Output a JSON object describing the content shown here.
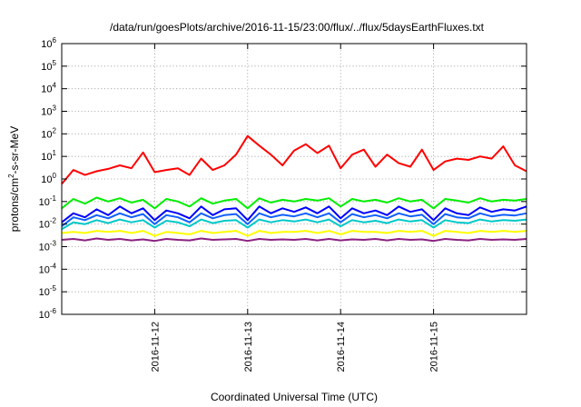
{
  "chart_data": {
    "type": "line",
    "title": "/data/run/goesPlots/archive/2016-11-15/23:00/flux/../flux/5daysEarthFluxes.txt",
    "xlabel": "Coordinated Universal Time (UTC)",
    "ylabel_parts": [
      "protons/cm",
      "2",
      "-s-sr-MeV"
    ],
    "yscale": "log",
    "ylim": [
      1e-06,
      1000000.0
    ],
    "xlim": [
      "2016-11-11T00:00",
      "2016-11-16T00:00"
    ],
    "grid": true,
    "y_ticks": [
      {
        "base": "10",
        "exp": "-6"
      },
      {
        "base": "10",
        "exp": "-5"
      },
      {
        "base": "10",
        "exp": "-4"
      },
      {
        "base": "10",
        "exp": "-3"
      },
      {
        "base": "10",
        "exp": "-2"
      },
      {
        "base": "10",
        "exp": "-1"
      },
      {
        "base": "10",
        "exp": "0"
      },
      {
        "base": "10",
        "exp": "1"
      },
      {
        "base": "10",
        "exp": "2"
      },
      {
        "base": "10",
        "exp": "3"
      },
      {
        "base": "10",
        "exp": "4"
      },
      {
        "base": "10",
        "exp": "5"
      },
      {
        "base": "10",
        "exp": "6"
      }
    ],
    "x_ticks": [
      "2016-11-12",
      "2016-11-13",
      "2016-11-14",
      "2016-11-15"
    ],
    "x": [
      "2016-11-11T00:00",
      "2016-11-11T03:00",
      "2016-11-11T06:00",
      "2016-11-11T09:00",
      "2016-11-11T12:00",
      "2016-11-11T15:00",
      "2016-11-11T18:00",
      "2016-11-11T21:00",
      "2016-11-12T00:00",
      "2016-11-12T03:00",
      "2016-11-12T06:00",
      "2016-11-12T09:00",
      "2016-11-12T12:00",
      "2016-11-12T15:00",
      "2016-11-12T18:00",
      "2016-11-12T21:00",
      "2016-11-13T00:00",
      "2016-11-13T03:00",
      "2016-11-13T06:00",
      "2016-11-13T09:00",
      "2016-11-13T12:00",
      "2016-11-13T15:00",
      "2016-11-13T18:00",
      "2016-11-13T21:00",
      "2016-11-14T00:00",
      "2016-11-14T03:00",
      "2016-11-14T06:00",
      "2016-11-14T09:00",
      "2016-11-14T12:00",
      "2016-11-14T15:00",
      "2016-11-14T18:00",
      "2016-11-14T21:00",
      "2016-11-15T00:00",
      "2016-11-15T03:00",
      "2016-11-15T06:00",
      "2016-11-15T09:00",
      "2016-11-15T12:00",
      "2016-11-15T15:00",
      "2016-11-15T18:00",
      "2016-11-15T21:00",
      "2016-11-16T00:00"
    ],
    "series": [
      {
        "color": "#ff0000",
        "values": [
          0.6,
          2.5,
          1.5,
          2.2,
          2.8,
          4,
          3,
          15,
          2,
          2.5,
          3,
          1.5,
          8,
          2.5,
          4,
          12,
          80,
          30,
          12,
          4,
          18,
          35,
          14,
          30,
          3,
          12,
          20,
          3.5,
          12,
          5,
          3.5,
          20,
          2.5,
          6,
          8,
          7,
          10,
          8,
          28,
          4,
          2.2
        ]
      },
      {
        "color": "#00ee00",
        "values": [
          0.05,
          0.13,
          0.08,
          0.15,
          0.1,
          0.14,
          0.09,
          0.12,
          0.05,
          0.13,
          0.1,
          0.06,
          0.14,
          0.08,
          0.11,
          0.13,
          0.05,
          0.14,
          0.09,
          0.12,
          0.1,
          0.13,
          0.11,
          0.14,
          0.06,
          0.13,
          0.1,
          0.12,
          0.09,
          0.14,
          0.1,
          0.12,
          0.05,
          0.13,
          0.11,
          0.09,
          0.14,
          0.1,
          0.12,
          0.11,
          0.13
        ]
      },
      {
        "color": "#0000ff",
        "values": [
          0.012,
          0.03,
          0.02,
          0.045,
          0.025,
          0.06,
          0.03,
          0.05,
          0.015,
          0.04,
          0.03,
          0.018,
          0.06,
          0.025,
          0.045,
          0.05,
          0.015,
          0.06,
          0.03,
          0.05,
          0.035,
          0.055,
          0.03,
          0.06,
          0.018,
          0.05,
          0.03,
          0.04,
          0.025,
          0.06,
          0.035,
          0.045,
          0.015,
          0.05,
          0.03,
          0.025,
          0.055,
          0.035,
          0.045,
          0.04,
          0.06
        ]
      },
      {
        "color": "#1060ff",
        "values": [
          0.008,
          0.02,
          0.015,
          0.025,
          0.018,
          0.03,
          0.02,
          0.028,
          0.01,
          0.025,
          0.02,
          0.012,
          0.03,
          0.018,
          0.025,
          0.028,
          0.01,
          0.03,
          0.02,
          0.026,
          0.022,
          0.03,
          0.02,
          0.03,
          0.012,
          0.028,
          0.02,
          0.025,
          0.018,
          0.03,
          0.022,
          0.026,
          0.01,
          0.028,
          0.02,
          0.018,
          0.03,
          0.022,
          0.026,
          0.024,
          0.03
        ]
      },
      {
        "color": "#00c8c8",
        "values": [
          0.006,
          0.012,
          0.01,
          0.015,
          0.011,
          0.016,
          0.012,
          0.015,
          0.007,
          0.014,
          0.012,
          0.008,
          0.016,
          0.011,
          0.014,
          0.015,
          0.007,
          0.016,
          0.012,
          0.015,
          0.013,
          0.016,
          0.012,
          0.016,
          0.008,
          0.015,
          0.012,
          0.014,
          0.011,
          0.016,
          0.013,
          0.015,
          0.007,
          0.015,
          0.012,
          0.011,
          0.016,
          0.013,
          0.015,
          0.014,
          0.016
        ]
      },
      {
        "color": "#ffff00",
        "values": [
          0.004,
          0.0045,
          0.004,
          0.005,
          0.0045,
          0.005,
          0.004,
          0.005,
          0.003,
          0.0045,
          0.004,
          0.0035,
          0.005,
          0.004,
          0.0045,
          0.005,
          0.003,
          0.005,
          0.004,
          0.0045,
          0.0045,
          0.005,
          0.004,
          0.005,
          0.0035,
          0.005,
          0.0045,
          0.0045,
          0.004,
          0.005,
          0.0045,
          0.005,
          0.003,
          0.005,
          0.0045,
          0.004,
          0.005,
          0.0045,
          0.005,
          0.0045,
          0.005
        ]
      },
      {
        "color": "#8b2080",
        "values": [
          0.002,
          0.0022,
          0.0019,
          0.0023,
          0.002,
          0.0022,
          0.0019,
          0.0021,
          0.0018,
          0.0022,
          0.002,
          0.0019,
          0.0023,
          0.002,
          0.0021,
          0.0022,
          0.0018,
          0.0022,
          0.002,
          0.0021,
          0.002,
          0.0022,
          0.0019,
          0.0022,
          0.0019,
          0.0021,
          0.002,
          0.0022,
          0.0019,
          0.0022,
          0.002,
          0.0021,
          0.0018,
          0.0022,
          0.002,
          0.0019,
          0.0022,
          0.002,
          0.0021,
          0.002,
          0.0022
        ]
      }
    ]
  }
}
